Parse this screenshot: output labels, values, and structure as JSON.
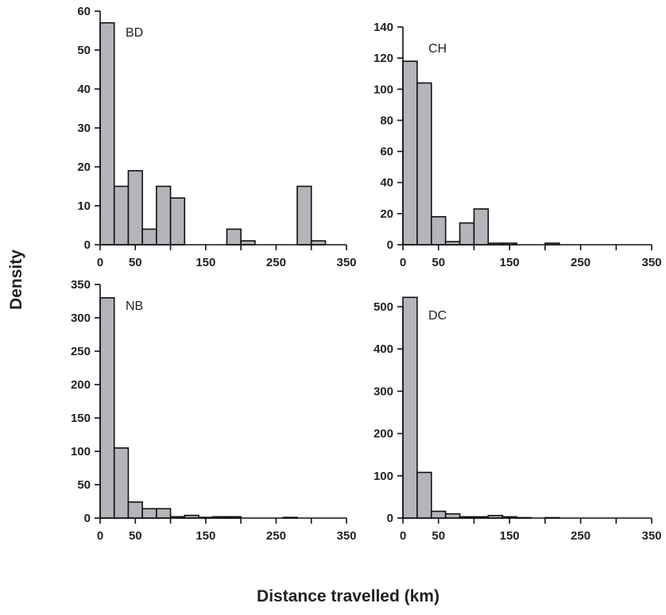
{
  "figure": {
    "xlabel": "Distance travelled (km)",
    "ylabel": "Density"
  },
  "chart_data": [
    {
      "type": "bar",
      "panel_label": "BD",
      "bin_width": 20,
      "bin_starts": [
        0,
        20,
        40,
        60,
        80,
        100,
        120,
        140,
        160,
        180,
        200,
        220,
        240,
        260,
        280,
        300
      ],
      "values": [
        57,
        15,
        19,
        4,
        15,
        12,
        0,
        0,
        0,
        4,
        1,
        0,
        0,
        0,
        15,
        1
      ],
      "xlim": [
        0,
        350
      ],
      "xticks": [
        0,
        50,
        100,
        150,
        200,
        250,
        300,
        350
      ],
      "xtick_labels": [
        "0",
        "50",
        "",
        "150",
        "",
        "250",
        "",
        "350"
      ],
      "ylim": [
        0,
        60
      ],
      "yticks": [
        0,
        10,
        20,
        30,
        40,
        50,
        60
      ],
      "ytick_labels": [
        "0",
        "10",
        "20",
        "30",
        "40",
        "50",
        "60"
      ]
    },
    {
      "type": "bar",
      "panel_label": "CH",
      "bin_width": 20,
      "bin_starts": [
        0,
        20,
        40,
        60,
        80,
        100,
        120,
        140,
        160,
        180,
        200
      ],
      "values": [
        118,
        104,
        18,
        2,
        14,
        23,
        1,
        1,
        0,
        0,
        1
      ],
      "xlim": [
        0,
        350
      ],
      "xticks": [
        0,
        50,
        100,
        150,
        200,
        250,
        300,
        350
      ],
      "xtick_labels": [
        "0",
        "50",
        "",
        "150",
        "",
        "250",
        "",
        "350"
      ],
      "ylim": [
        0,
        140
      ],
      "yticks": [
        0,
        20,
        40,
        60,
        80,
        100,
        120,
        140
      ],
      "ytick_labels": [
        "0",
        "20",
        "40",
        "60",
        "80",
        "100",
        "120",
        "140"
      ]
    },
    {
      "type": "bar",
      "panel_label": "NB",
      "bin_width": 20,
      "bin_starts": [
        0,
        20,
        40,
        60,
        80,
        100,
        120,
        140,
        160,
        180,
        200,
        220,
        240,
        260
      ],
      "values": [
        330,
        105,
        24,
        14,
        14,
        2,
        4,
        1,
        2,
        2,
        0,
        0,
        0,
        1
      ],
      "xlim": [
        0,
        350
      ],
      "xticks": [
        0,
        50,
        100,
        150,
        200,
        250,
        300,
        350
      ],
      "xtick_labels": [
        "0",
        "50",
        "",
        "150",
        "",
        "250",
        "",
        "350"
      ],
      "ylim": [
        0,
        350
      ],
      "yticks": [
        0,
        50,
        100,
        150,
        200,
        250,
        300,
        350
      ],
      "ytick_labels": [
        "0",
        "50",
        "100",
        "150",
        "200",
        "250",
        "300",
        "350"
      ]
    },
    {
      "type": "bar",
      "panel_label": "DC",
      "bin_width": 20,
      "bin_starts": [
        0,
        20,
        40,
        60,
        80,
        100,
        120,
        140,
        160,
        180,
        200
      ],
      "values": [
        522,
        108,
        16,
        10,
        3,
        3,
        6,
        3,
        1,
        0,
        1
      ],
      "xlim": [
        0,
        350
      ],
      "xticks": [
        0,
        50,
        100,
        150,
        200,
        250,
        300,
        350
      ],
      "xtick_labels": [
        "0",
        "50",
        "",
        "150",
        "",
        "250",
        "",
        "350"
      ],
      "ylim": [
        0,
        530
      ],
      "yticks": [
        0,
        100,
        200,
        300,
        400,
        500
      ],
      "ytick_labels": [
        "0",
        "100",
        "200",
        "300",
        "400",
        "500"
      ]
    }
  ]
}
